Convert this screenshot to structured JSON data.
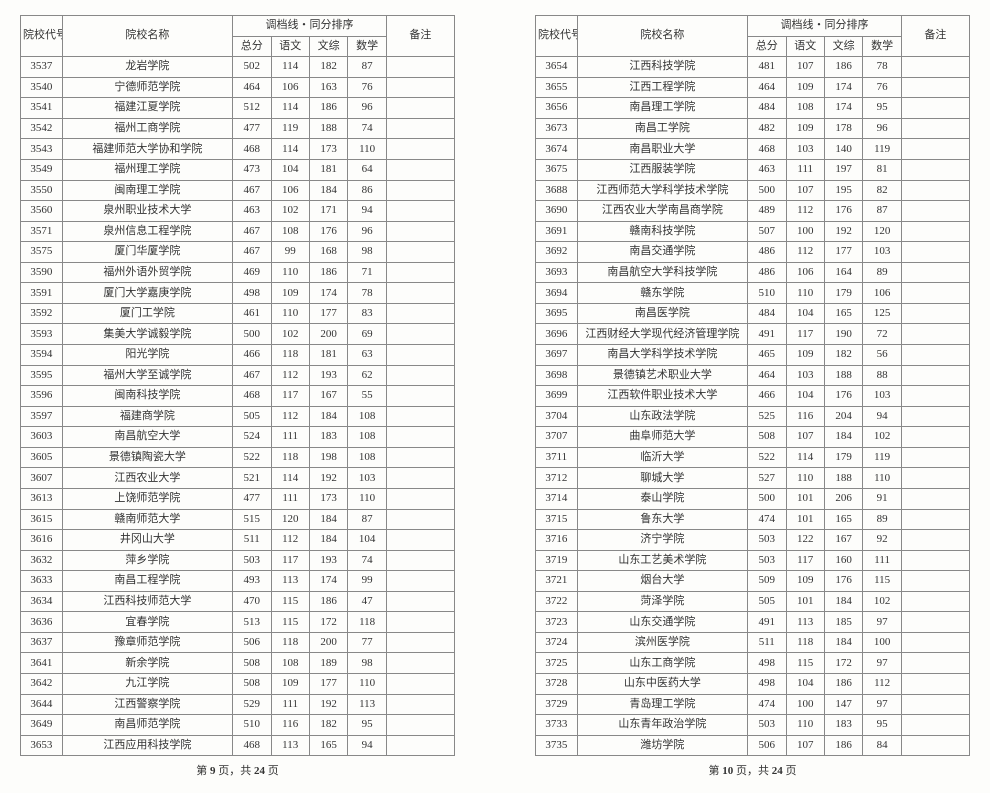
{
  "headers": {
    "code": "院校代号",
    "name": "院校名称",
    "scoreGroup": "调档线・同分排序",
    "total": "总分",
    "chinese": "语文",
    "wenzong": "文综",
    "math": "数学",
    "note": "备注"
  },
  "footer": {
    "prefix": "第 ",
    "mid": " 页，共 ",
    "totalPages": "24",
    "suffix": " 页"
  },
  "leftPage": {
    "pageNum": "9",
    "rows": [
      {
        "code": "3537",
        "name": "龙岩学院",
        "t": "502",
        "c": "114",
        "w": "182",
        "m": "87"
      },
      {
        "code": "3540",
        "name": "宁德师范学院",
        "t": "464",
        "c": "106",
        "w": "163",
        "m": "76"
      },
      {
        "code": "3541",
        "name": "福建江夏学院",
        "t": "512",
        "c": "114",
        "w": "186",
        "m": "96"
      },
      {
        "code": "3542",
        "name": "福州工商学院",
        "t": "477",
        "c": "119",
        "w": "188",
        "m": "74"
      },
      {
        "code": "3543",
        "name": "福建师范大学协和学院",
        "t": "468",
        "c": "114",
        "w": "173",
        "m": "110"
      },
      {
        "code": "3549",
        "name": "福州理工学院",
        "t": "473",
        "c": "104",
        "w": "181",
        "m": "64"
      },
      {
        "code": "3550",
        "name": "闽南理工学院",
        "t": "467",
        "c": "106",
        "w": "184",
        "m": "86"
      },
      {
        "code": "3560",
        "name": "泉州职业技术大学",
        "t": "463",
        "c": "102",
        "w": "171",
        "m": "94"
      },
      {
        "code": "3571",
        "name": "泉州信息工程学院",
        "t": "467",
        "c": "108",
        "w": "176",
        "m": "96"
      },
      {
        "code": "3575",
        "name": "厦门华厦学院",
        "t": "467",
        "c": "99",
        "w": "168",
        "m": "98"
      },
      {
        "code": "3590",
        "name": "福州外语外贸学院",
        "t": "469",
        "c": "110",
        "w": "186",
        "m": "71"
      },
      {
        "code": "3591",
        "name": "厦门大学嘉庚学院",
        "t": "498",
        "c": "109",
        "w": "174",
        "m": "78"
      },
      {
        "code": "3592",
        "name": "厦门工学院",
        "t": "461",
        "c": "110",
        "w": "177",
        "m": "83"
      },
      {
        "code": "3593",
        "name": "集美大学诚毅学院",
        "t": "500",
        "c": "102",
        "w": "200",
        "m": "69"
      },
      {
        "code": "3594",
        "name": "阳光学院",
        "t": "466",
        "c": "118",
        "w": "181",
        "m": "63"
      },
      {
        "code": "3595",
        "name": "福州大学至诚学院",
        "t": "467",
        "c": "112",
        "w": "193",
        "m": "62"
      },
      {
        "code": "3596",
        "name": "闽南科技学院",
        "t": "468",
        "c": "117",
        "w": "167",
        "m": "55"
      },
      {
        "code": "3597",
        "name": "福建商学院",
        "t": "505",
        "c": "112",
        "w": "184",
        "m": "108"
      },
      {
        "code": "3603",
        "name": "南昌航空大学",
        "t": "524",
        "c": "111",
        "w": "183",
        "m": "108"
      },
      {
        "code": "3605",
        "name": "景德镇陶瓷大学",
        "t": "522",
        "c": "118",
        "w": "198",
        "m": "108"
      },
      {
        "code": "3607",
        "name": "江西农业大学",
        "t": "521",
        "c": "114",
        "w": "192",
        "m": "103"
      },
      {
        "code": "3613",
        "name": "上饶师范学院",
        "t": "477",
        "c": "111",
        "w": "173",
        "m": "110"
      },
      {
        "code": "3615",
        "name": "赣南师范大学",
        "t": "515",
        "c": "120",
        "w": "184",
        "m": "87"
      },
      {
        "code": "3616",
        "name": "井冈山大学",
        "t": "511",
        "c": "112",
        "w": "184",
        "m": "104"
      },
      {
        "code": "3632",
        "name": "萍乡学院",
        "t": "503",
        "c": "117",
        "w": "193",
        "m": "74"
      },
      {
        "code": "3633",
        "name": "南昌工程学院",
        "t": "493",
        "c": "113",
        "w": "174",
        "m": "99"
      },
      {
        "code": "3634",
        "name": "江西科技师范大学",
        "t": "470",
        "c": "115",
        "w": "186",
        "m": "47"
      },
      {
        "code": "3636",
        "name": "宜春学院",
        "t": "513",
        "c": "115",
        "w": "172",
        "m": "118"
      },
      {
        "code": "3637",
        "name": "豫章师范学院",
        "t": "506",
        "c": "118",
        "w": "200",
        "m": "77"
      },
      {
        "code": "3641",
        "name": "新余学院",
        "t": "508",
        "c": "108",
        "w": "189",
        "m": "98"
      },
      {
        "code": "3642",
        "name": "九江学院",
        "t": "508",
        "c": "109",
        "w": "177",
        "m": "110"
      },
      {
        "code": "3644",
        "name": "江西警察学院",
        "t": "529",
        "c": "111",
        "w": "192",
        "m": "113"
      },
      {
        "code": "3649",
        "name": "南昌师范学院",
        "t": "510",
        "c": "116",
        "w": "182",
        "m": "95"
      },
      {
        "code": "3653",
        "name": "江西应用科技学院",
        "t": "468",
        "c": "113",
        "w": "165",
        "m": "94"
      }
    ]
  },
  "rightPage": {
    "pageNum": "10",
    "rows": [
      {
        "code": "3654",
        "name": "江西科技学院",
        "t": "481",
        "c": "107",
        "w": "186",
        "m": "78"
      },
      {
        "code": "3655",
        "name": "江西工程学院",
        "t": "464",
        "c": "109",
        "w": "174",
        "m": "76"
      },
      {
        "code": "3656",
        "name": "南昌理工学院",
        "t": "484",
        "c": "108",
        "w": "174",
        "m": "95"
      },
      {
        "code": "3673",
        "name": "南昌工学院",
        "t": "482",
        "c": "109",
        "w": "178",
        "m": "96"
      },
      {
        "code": "3674",
        "name": "南昌职业大学",
        "t": "468",
        "c": "103",
        "w": "140",
        "m": "119"
      },
      {
        "code": "3675",
        "name": "江西服装学院",
        "t": "463",
        "c": "111",
        "w": "197",
        "m": "81"
      },
      {
        "code": "3688",
        "name": "江西师范大学科学技术学院",
        "t": "500",
        "c": "107",
        "w": "195",
        "m": "82"
      },
      {
        "code": "3690",
        "name": "江西农业大学南昌商学院",
        "t": "489",
        "c": "112",
        "w": "176",
        "m": "87"
      },
      {
        "code": "3691",
        "name": "赣南科技学院",
        "t": "507",
        "c": "100",
        "w": "192",
        "m": "120"
      },
      {
        "code": "3692",
        "name": "南昌交通学院",
        "t": "486",
        "c": "112",
        "w": "177",
        "m": "103"
      },
      {
        "code": "3693",
        "name": "南昌航空大学科技学院",
        "t": "486",
        "c": "106",
        "w": "164",
        "m": "89"
      },
      {
        "code": "3694",
        "name": "赣东学院",
        "t": "510",
        "c": "110",
        "w": "179",
        "m": "106"
      },
      {
        "code": "3695",
        "name": "南昌医学院",
        "t": "484",
        "c": "104",
        "w": "165",
        "m": "125"
      },
      {
        "code": "3696",
        "name": "江西财经大学现代经济管理学院",
        "t": "491",
        "c": "117",
        "w": "190",
        "m": "72"
      },
      {
        "code": "3697",
        "name": "南昌大学科学技术学院",
        "t": "465",
        "c": "109",
        "w": "182",
        "m": "56"
      },
      {
        "code": "3698",
        "name": "景德镇艺术职业大学",
        "t": "464",
        "c": "103",
        "w": "188",
        "m": "88"
      },
      {
        "code": "3699",
        "name": "江西软件职业技术大学",
        "t": "466",
        "c": "104",
        "w": "176",
        "m": "103"
      },
      {
        "code": "3704",
        "name": "山东政法学院",
        "t": "525",
        "c": "116",
        "w": "204",
        "m": "94"
      },
      {
        "code": "3707",
        "name": "曲阜师范大学",
        "t": "508",
        "c": "107",
        "w": "184",
        "m": "102"
      },
      {
        "code": "3711",
        "name": "临沂大学",
        "t": "522",
        "c": "114",
        "w": "179",
        "m": "119"
      },
      {
        "code": "3712",
        "name": "聊城大学",
        "t": "527",
        "c": "110",
        "w": "188",
        "m": "110"
      },
      {
        "code": "3714",
        "name": "泰山学院",
        "t": "500",
        "c": "101",
        "w": "206",
        "m": "91"
      },
      {
        "code": "3715",
        "name": "鲁东大学",
        "t": "474",
        "c": "101",
        "w": "165",
        "m": "89"
      },
      {
        "code": "3716",
        "name": "济宁学院",
        "t": "503",
        "c": "122",
        "w": "167",
        "m": "92"
      },
      {
        "code": "3719",
        "name": "山东工艺美术学院",
        "t": "503",
        "c": "117",
        "w": "160",
        "m": "111"
      },
      {
        "code": "3721",
        "name": "烟台大学",
        "t": "509",
        "c": "109",
        "w": "176",
        "m": "115"
      },
      {
        "code": "3722",
        "name": "菏泽学院",
        "t": "505",
        "c": "101",
        "w": "184",
        "m": "102"
      },
      {
        "code": "3723",
        "name": "山东交通学院",
        "t": "491",
        "c": "113",
        "w": "185",
        "m": "97"
      },
      {
        "code": "3724",
        "name": "滨州医学院",
        "t": "511",
        "c": "118",
        "w": "184",
        "m": "100"
      },
      {
        "code": "3725",
        "name": "山东工商学院",
        "t": "498",
        "c": "115",
        "w": "172",
        "m": "97"
      },
      {
        "code": "3728",
        "name": "山东中医药大学",
        "t": "498",
        "c": "104",
        "w": "186",
        "m": "112"
      },
      {
        "code": "3729",
        "name": "青岛理工学院",
        "t": "474",
        "c": "100",
        "w": "147",
        "m": "97"
      },
      {
        "code": "3733",
        "name": "山东青年政治学院",
        "t": "503",
        "c": "110",
        "w": "183",
        "m": "95"
      },
      {
        "code": "3735",
        "name": "潍坊学院",
        "t": "506",
        "c": "107",
        "w": "186",
        "m": "84"
      }
    ]
  }
}
